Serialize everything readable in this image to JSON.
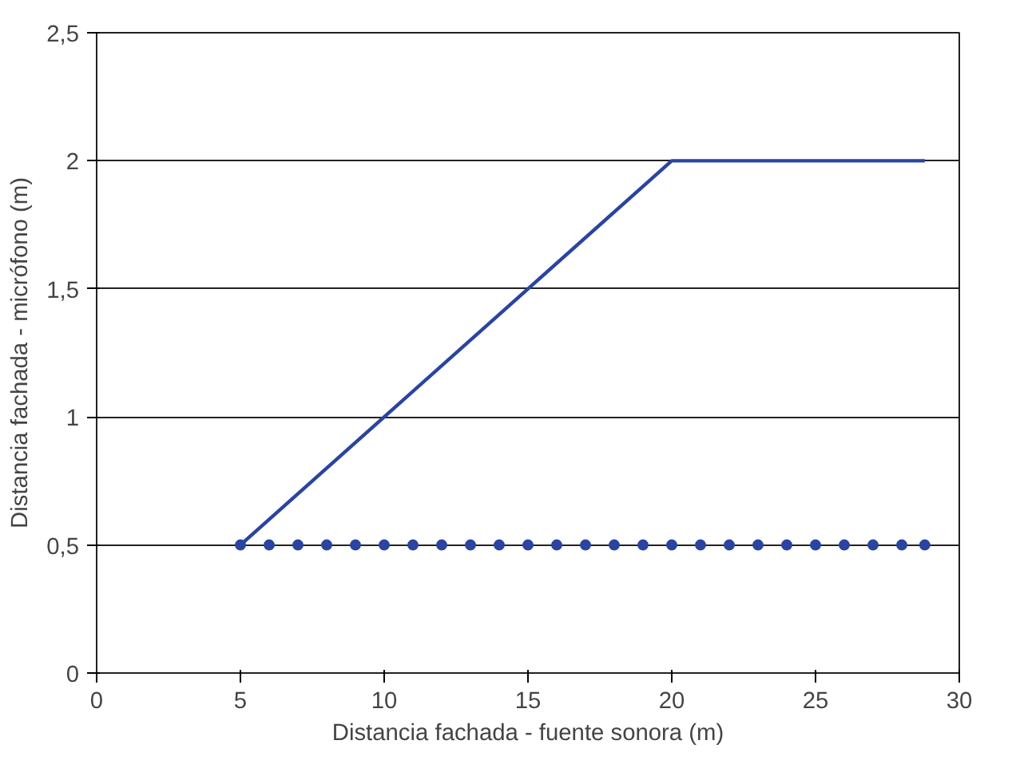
{
  "chart_data": {
    "type": "line",
    "xlabel": "Distancia fachada - fuente sonora (m)",
    "ylabel": "Distancia fachada - micrófono (m)",
    "xlim": [
      0,
      30
    ],
    "ylim": [
      0,
      2.5
    ],
    "xticks": [
      0,
      5,
      10,
      15,
      20,
      25,
      30
    ],
    "yticks": [
      0,
      {
        "value": 0.5,
        "label": "0,5"
      },
      1,
      {
        "value": 1.5,
        "label": "1,5"
      },
      2,
      {
        "value": 2.5,
        "label": "2,5"
      }
    ],
    "grid": "y",
    "series": [
      {
        "color": "#2a44a0",
        "x": [
          5,
          20,
          28.8
        ],
        "values": [
          0.5,
          2,
          2
        ]
      },
      {
        "type": "scatter",
        "marker": "circle",
        "color": "#2a44a0",
        "x": [
          5,
          6,
          7,
          8,
          9,
          10,
          11,
          12,
          13,
          14,
          15,
          16,
          17,
          18,
          19,
          20,
          21,
          22,
          23,
          24,
          25,
          26,
          27,
          28,
          28.8
        ],
        "values": [
          0.5,
          0.5,
          0.5,
          0.5,
          0.5,
          0.5,
          0.5,
          0.5,
          0.5,
          0.5,
          0.5,
          0.5,
          0.5,
          0.5,
          0.5,
          0.5,
          0.5,
          0.5,
          0.5,
          0.5,
          0.5,
          0.5,
          0.5,
          0.5,
          0.5
        ]
      }
    ]
  }
}
